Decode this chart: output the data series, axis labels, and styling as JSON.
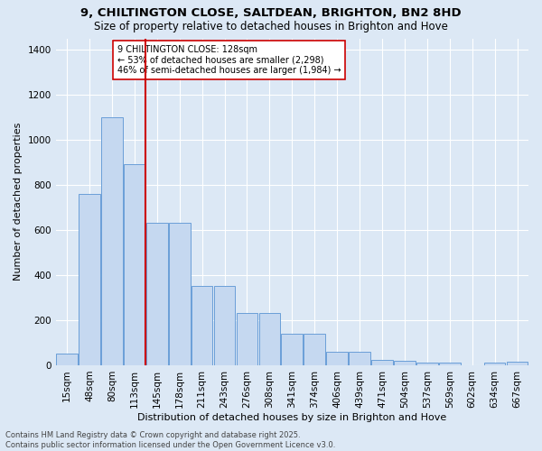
{
  "title": "9, CHILTINGTON CLOSE, SALTDEAN, BRIGHTON, BN2 8HD",
  "subtitle": "Size of property relative to detached houses in Brighton and Hove",
  "xlabel": "Distribution of detached houses by size in Brighton and Hove",
  "ylabel": "Number of detached properties",
  "categories": [
    "15sqm",
    "48sqm",
    "80sqm",
    "113sqm",
    "145sqm",
    "178sqm",
    "211sqm",
    "243sqm",
    "276sqm",
    "308sqm",
    "341sqm",
    "374sqm",
    "406sqm",
    "439sqm",
    "471sqm",
    "504sqm",
    "537sqm",
    "569sqm",
    "602sqm",
    "634sqm",
    "667sqm"
  ],
  "values": [
    50,
    760,
    1100,
    890,
    630,
    630,
    350,
    350,
    230,
    230,
    140,
    140,
    60,
    60,
    25,
    20,
    10,
    10,
    0,
    10,
    15
  ],
  "bar_color": "#c5d8f0",
  "bar_edge_color": "#6a9fd8",
  "background_color": "#dce8f5",
  "grid_color": "#ffffff",
  "vline_x_index": 3,
  "vline_color": "#cc0000",
  "annotation_text": "9 CHILTINGTON CLOSE: 128sqm\n← 53% of detached houses are smaller (2,298)\n46% of semi-detached houses are larger (1,984) →",
  "annotation_box_color": "#ffffff",
  "annotation_box_edge_color": "#cc0000",
  "footer": "Contains HM Land Registry data © Crown copyright and database right 2025.\nContains public sector information licensed under the Open Government Licence v3.0.",
  "ylim": [
    0,
    1450
  ],
  "yticks": [
    0,
    200,
    400,
    600,
    800,
    1000,
    1200,
    1400
  ],
  "title_fontsize": 9.5,
  "subtitle_fontsize": 8.5,
  "xlabel_fontsize": 8,
  "ylabel_fontsize": 8,
  "tick_fontsize": 7.5,
  "footer_fontsize": 6,
  "annotation_fontsize": 7
}
